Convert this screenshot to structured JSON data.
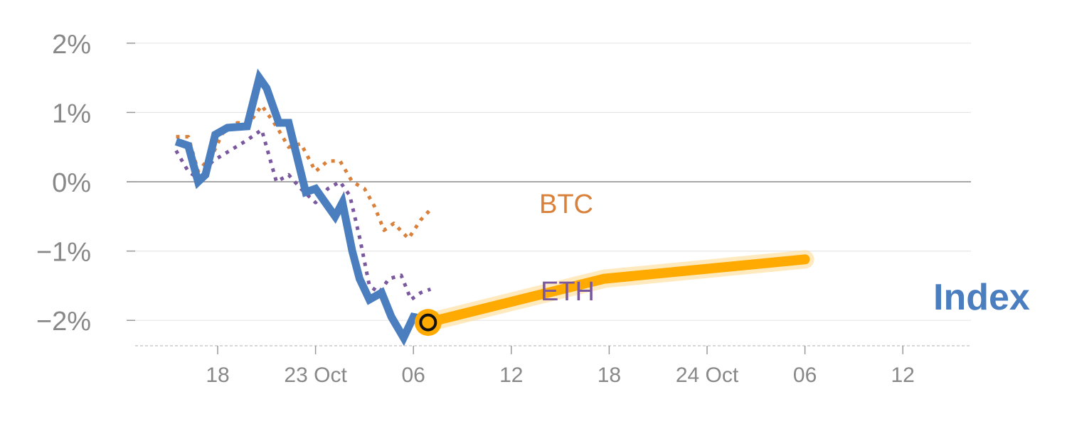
{
  "chart_data": {
    "type": "line",
    "y_unit": "%",
    "ylim": [
      -2.3,
      2.0
    ],
    "y_ticks": [
      2,
      1,
      0,
      -1,
      -2
    ],
    "y_tick_labels": [
      "2%",
      "1%",
      "0%",
      "−1%",
      "−2%"
    ],
    "x_tick_labels": [
      "18",
      "23 Oct",
      "06",
      "12",
      "18",
      "24 Oct",
      "06",
      "12"
    ],
    "grid": true,
    "zero_line": true,
    "series": [
      {
        "name": "BTC",
        "color": "#d9813b",
        "style": "dotted",
        "x": [
          -1.7,
          -1.2,
          -0.8,
          -0.2,
          0.2,
          0.8,
          1.3,
          1.8,
          2.4,
          2.9,
          3.4,
          4.0,
          4.5,
          5.0,
          5.5,
          6.0,
          6.4,
          6.8,
          7.2,
          7.8,
          8.3,
          8.7
        ],
        "y": [
          0.65,
          0.65,
          0.15,
          0.4,
          0.7,
          0.85,
          0.85,
          1.1,
          0.8,
          0.5,
          0.55,
          0.15,
          0.3,
          0.3,
          0.0,
          -0.1,
          -0.35,
          -0.7,
          -0.6,
          -0.82,
          -0.55,
          -0.4
        ]
      },
      {
        "name": "ETH",
        "color": "#7a58a0",
        "style": "dotted",
        "x": [
          -1.7,
          -1.2,
          -0.8,
          -0.2,
          0.5,
          1.2,
          1.8,
          2.4,
          2.9,
          3.4,
          4.0,
          4.5,
          5.0,
          5.4,
          5.8,
          6.2,
          6.6,
          7.0,
          7.5,
          7.9,
          8.3,
          8.7
        ],
        "y": [
          0.45,
          0.15,
          0.05,
          0.3,
          0.45,
          0.6,
          0.75,
          0.0,
          0.1,
          -0.1,
          -0.3,
          -0.1,
          0.0,
          -0.2,
          -0.8,
          -1.5,
          -1.6,
          -1.4,
          -1.35,
          -1.7,
          -1.6,
          -1.55
        ]
      },
      {
        "name": "Index",
        "color": "#4a7ebf",
        "style": "solid",
        "x": [
          -1.7,
          -1.2,
          -0.8,
          -0.5,
          -0.1,
          0.4,
          1.2,
          1.7,
          2.0,
          2.5,
          2.9,
          3.6,
          4.0,
          4.3,
          4.8,
          5.1,
          5.5,
          5.8,
          6.2,
          6.7,
          7.1,
          7.6,
          8.0,
          8.3,
          8.6
        ],
        "y": [
          0.58,
          0.52,
          0.0,
          0.1,
          0.68,
          0.78,
          0.8,
          1.5,
          1.35,
          0.85,
          0.85,
          -0.15,
          -0.1,
          -0.25,
          -0.5,
          -0.3,
          -1.0,
          -1.4,
          -1.7,
          -1.6,
          -1.95,
          -2.25,
          -1.95,
          -1.97,
          -2.03
        ]
      },
      {
        "name": "Index",
        "color": "#ffaa00",
        "style": "forecast",
        "x": [
          8.6,
          15.8,
          24.0
        ],
        "y": [
          -2.03,
          -1.4,
          -1.12
        ]
      }
    ],
    "marker": {
      "x": 8.6,
      "y": -2.03
    }
  },
  "labels": {
    "btc": "BTC",
    "eth": "ETH",
    "index": "Index"
  }
}
